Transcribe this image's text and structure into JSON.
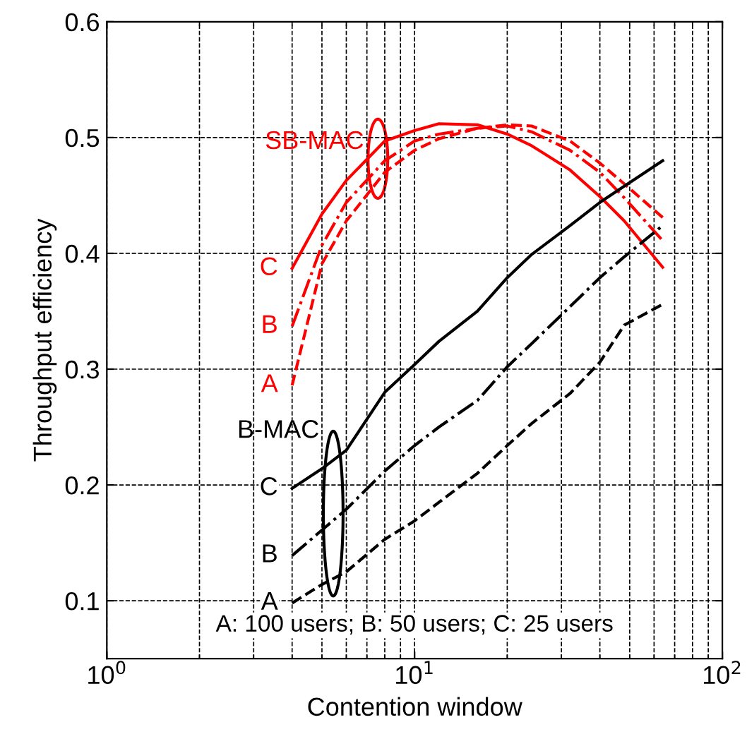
{
  "chart_data": {
    "type": "line",
    "xlabel": "Contention window",
    "ylabel": "Throughput efficiency",
    "x": [
      4,
      5,
      6,
      8,
      10,
      12,
      16,
      20,
      24,
      32,
      40,
      48,
      64
    ],
    "series": [
      {
        "name": "C",
        "color": "#ff0000",
        "line_style": "solid",
        "values": [
          0.387,
          0.434,
          0.463,
          0.497,
          0.506,
          0.512,
          0.511,
          0.503,
          0.493,
          0.472,
          0.449,
          0.428,
          0.388
        ]
      },
      {
        "name": "B",
        "color": "#ff0000",
        "line_style": "dashdot",
        "values": [
          0.337,
          0.407,
          0.444,
          0.48,
          0.497,
          0.503,
          0.508,
          0.51,
          0.505,
          0.489,
          0.47,
          0.448,
          0.411
        ]
      },
      {
        "name": "A",
        "color": "#ff0000",
        "line_style": "dashed",
        "values": [
          0.286,
          0.391,
          0.428,
          0.47,
          0.489,
          0.499,
          0.508,
          0.511,
          0.51,
          0.497,
          0.478,
          0.46,
          0.431
        ]
      },
      {
        "name": "C",
        "color": "#000000",
        "line_style": "solid",
        "values": [
          0.197,
          0.214,
          0.23,
          0.28,
          0.304,
          0.324,
          0.35,
          0.379,
          0.399,
          0.424,
          0.444,
          0.458,
          0.48
        ]
      },
      {
        "name": "B",
        "color": "#000000",
        "line_style": "dashdot",
        "values": [
          0.139,
          0.161,
          0.179,
          0.212,
          0.234,
          0.25,
          0.273,
          0.302,
          0.322,
          0.354,
          0.379,
          0.397,
          0.424
        ]
      },
      {
        "name": "A",
        "color": "#000000",
        "line_style": "dashed",
        "values": [
          0.098,
          0.114,
          0.125,
          0.153,
          0.169,
          0.185,
          0.21,
          0.234,
          0.253,
          0.279,
          0.306,
          0.338,
          0.356
        ]
      }
    ],
    "annotations": [
      "SB-MAC",
      "B-MAC",
      "A: 100 users; B: 50 users; C: 25 users"
    ],
    "log": "x",
    "xlim": [
      1,
      100
    ],
    "ylim": [
      0.05,
      0.6
    ],
    "xticks": [
      {
        "value": 1,
        "label": "10$^{0}$"
      },
      {
        "value": 10,
        "label": "10$^{1}$"
      },
      {
        "value": 100,
        "label": "10$^{2}$"
      }
    ],
    "yticks": [
      0.1,
      0.2,
      0.3,
      0.4,
      0.5,
      0.6
    ],
    "grid": true,
    "legend": false
  }
}
